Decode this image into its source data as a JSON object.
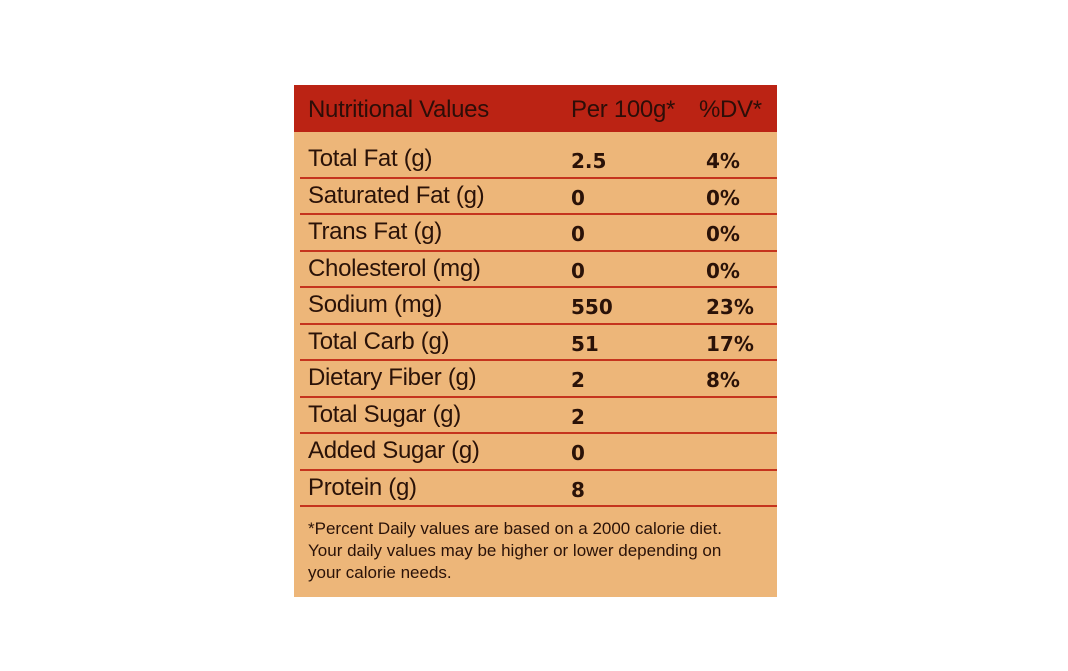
{
  "table": {
    "header": {
      "name": "Nutritional Values",
      "per": "Per 100g*",
      "dv": "%DV*"
    },
    "rows": [
      {
        "name": "Total Fat (g)",
        "value": "2.5",
        "dv": "4%"
      },
      {
        "name": "Saturated Fat (g)",
        "value": "0",
        "dv": "0%"
      },
      {
        "name": "Trans Fat (g)",
        "value": "0",
        "dv": "0%"
      },
      {
        "name": "Cholesterol (mg)",
        "value": "0",
        "dv": "0%"
      },
      {
        "name": "Sodium (mg)",
        "value": "550",
        "dv": "23%"
      },
      {
        "name": "Total Carb (g)",
        "value": "51",
        "dv": "17%"
      },
      {
        "name": "Dietary Fiber (g)",
        "value": "2",
        "dv": "8%"
      },
      {
        "name": "Total Sugar (g)",
        "value": "2",
        "dv": ""
      },
      {
        "name": "Added Sugar (g)",
        "value": "0",
        "dv": ""
      },
      {
        "name": "Protein (g)",
        "value": "8",
        "dv": ""
      }
    ],
    "footnote_lines": [
      "*Percent Daily values are based on a 2000 calorie diet.",
      "Your daily values may be higher or lower depending on",
      "your calorie needs."
    ]
  },
  "colors": {
    "header_bg": "#bb2314",
    "panel_bg": "#edb679",
    "rule": "#c5341e"
  }
}
